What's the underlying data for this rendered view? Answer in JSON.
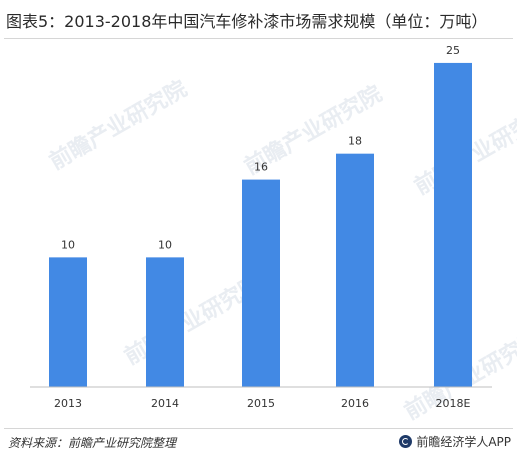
{
  "title": "图表5：2013-2018年中国汽车修补漆市场需求规模（单位：万吨）",
  "source": "资料来源：前瞻产业研究院整理",
  "brand": "前瞻经济学人APP",
  "watermark": "前瞻产业研究院",
  "colors": {
    "bar": "#4289e4",
    "axis": "#bfbfbf"
  },
  "chart_data": {
    "type": "bar",
    "title": "图表5：2013-2018年中国汽车修补漆市场需求规模（单位：万吨）",
    "categories": [
      "2013",
      "2014",
      "2015",
      "2016",
      "2018E"
    ],
    "values": [
      10,
      10,
      16,
      18,
      25
    ],
    "ylim": [
      0,
      27
    ],
    "grid": false,
    "legend": "none"
  }
}
